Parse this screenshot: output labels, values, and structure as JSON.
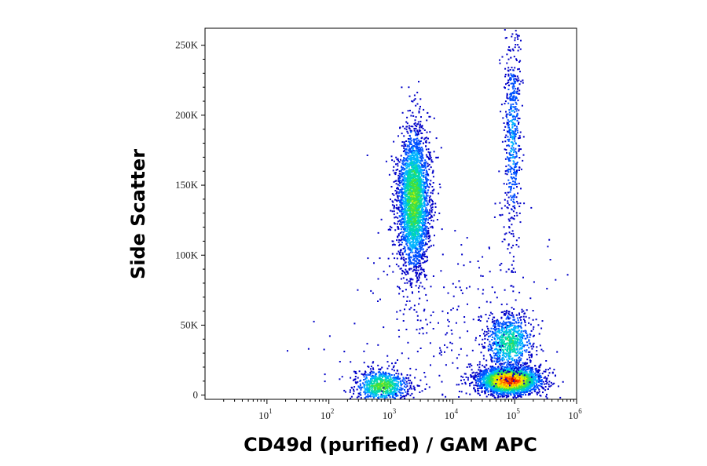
{
  "chart_data": {
    "type": "scatter",
    "subtype": "flow-cytometry-density-dot-plot",
    "title": "",
    "xlabel": "CD49d (purified) / GAM APC",
    "ylabel": "Side Scatter",
    "x_scale": "log",
    "xlim": [
      1,
      1000000
    ],
    "ylim": [
      -3000,
      262144
    ],
    "x_ticks": [
      {
        "value": 10,
        "base": "10",
        "exp": "1"
      },
      {
        "value": 100,
        "base": "10",
        "exp": "2"
      },
      {
        "value": 1000,
        "base": "10",
        "exp": "3"
      },
      {
        "value": 10000,
        "base": "10",
        "exp": "4"
      },
      {
        "value": 100000,
        "base": "10",
        "exp": "5"
      },
      {
        "value": 1000000,
        "base": "10",
        "exp": "6"
      }
    ],
    "y_ticks": [
      {
        "value": 0,
        "label": "0"
      },
      {
        "value": 50000,
        "label": "50K"
      },
      {
        "value": 100000,
        "label": "100K"
      },
      {
        "value": 150000,
        "label": "150K"
      },
      {
        "value": 200000,
        "label": "200K"
      },
      {
        "value": 250000,
        "label": "250K"
      }
    ],
    "grid": false,
    "legend": "none",
    "colormap": [
      "#0000c8",
      "#0050ff",
      "#00b4ff",
      "#00d8b0",
      "#40e040",
      "#c8f000",
      "#ffe000",
      "#ff8000",
      "#ff2000",
      "#c80000"
    ],
    "populations": [
      {
        "x_center": 700,
        "x_spread_decades": 0.22,
        "y_center": 7000,
        "y_spread": 6000,
        "count": 800,
        "peak_density": 0.55
      },
      {
        "x_center": 2300,
        "x_spread_decades": 0.13,
        "y_center": 140000,
        "y_spread": 26000,
        "count": 2800,
        "peak_density": 0.55
      },
      {
        "x_center": 80000,
        "x_spread_decades": 0.25,
        "y_center": 11000,
        "y_spread": 5000,
        "count": 2800,
        "peak_density": 1.0
      },
      {
        "x_center": 80000,
        "x_spread_decades": 0.2,
        "y_center": 38000,
        "y_spread": 11000,
        "count": 800,
        "peak_density": 0.45
      },
      {
        "x_center": 90000,
        "x_spread_decades": 0.07,
        "y_center": 185000,
        "y_spread": 38000,
        "count": 550,
        "peak_density": 0.25
      },
      {
        "x_center": 10000,
        "x_spread_decades": 0.9,
        "y_center": 40000,
        "y_spread": 45000,
        "count": 320,
        "peak_density": 0.05
      }
    ]
  }
}
